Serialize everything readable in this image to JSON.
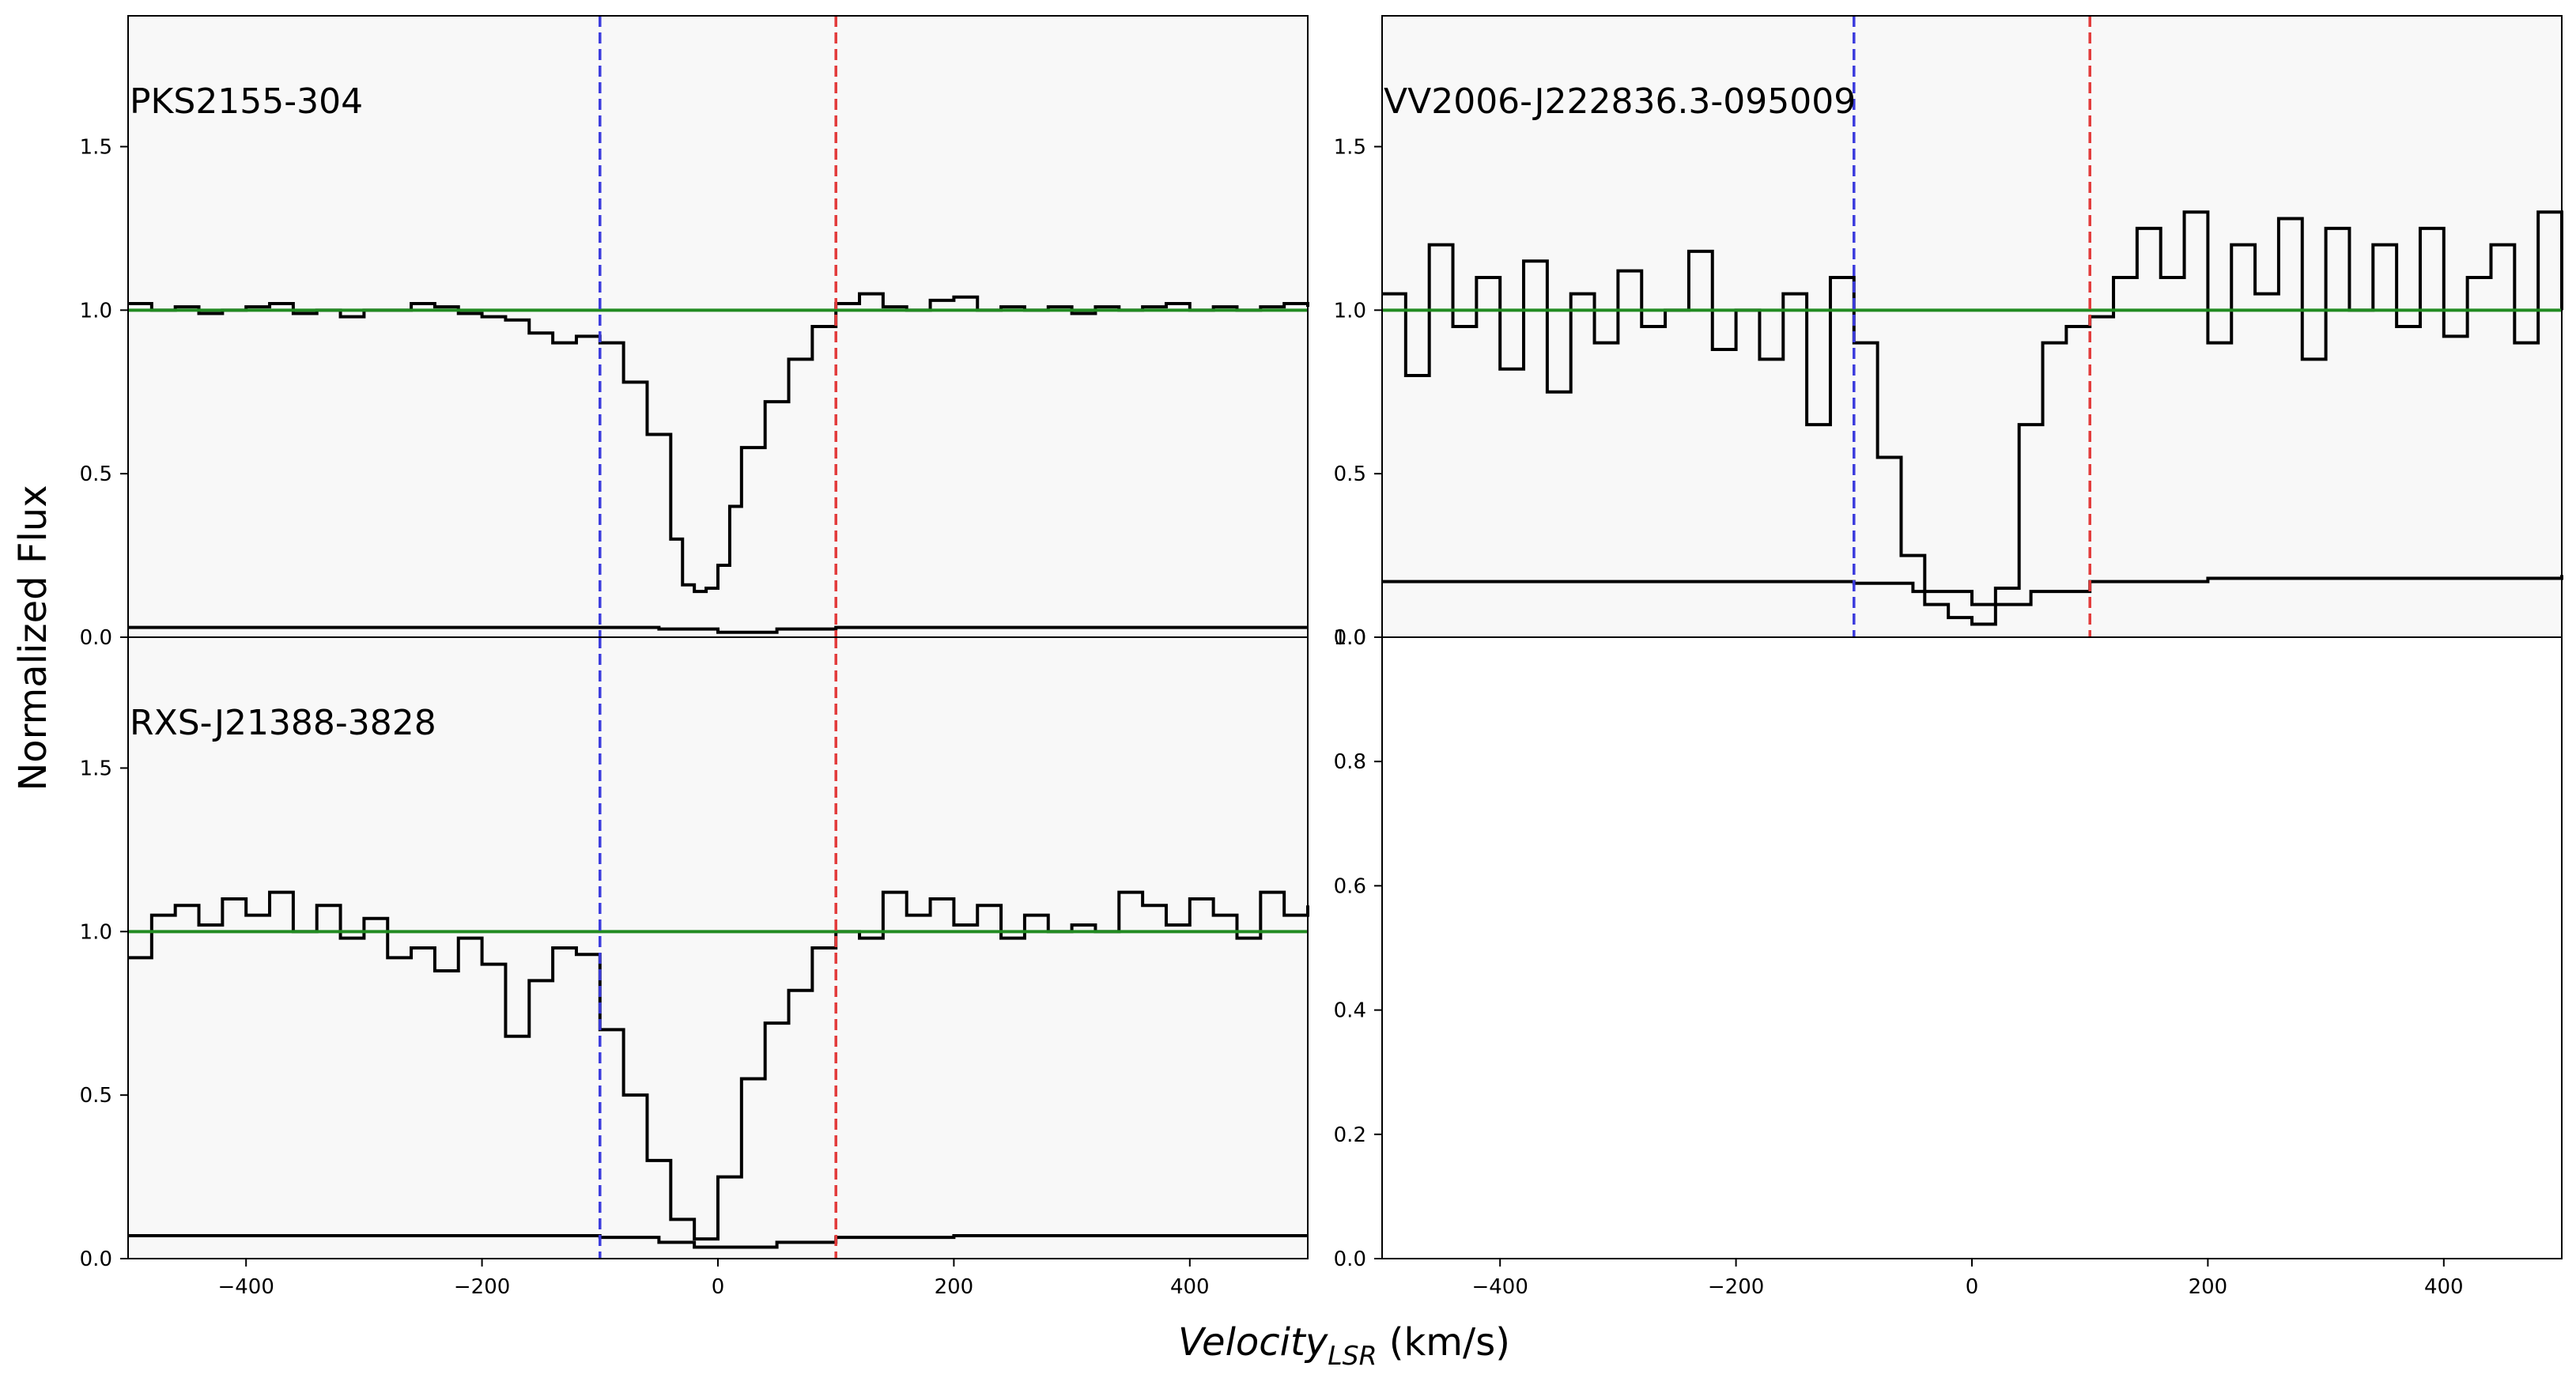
{
  "figure": {
    "xlabel_main": "Velocity",
    "xlabel_sub": "LSR",
    "xlabel_unit": " (km/s)",
    "ylabel": "Normalized Flux"
  },
  "chart_data": [
    {
      "type": "line",
      "panel": "top-left",
      "title": "PKS2155-304",
      "xlim": [
        -500,
        500
      ],
      "ylim": [
        0,
        1.9
      ],
      "yticks": [
        0.0,
        0.5,
        1.0,
        1.5
      ],
      "ytick_labels": [
        "0.0",
        "0.5",
        "1.0",
        "1.5"
      ],
      "xticks": [],
      "xtick_labels": [],
      "vlines": [
        {
          "x": -100,
          "color": "#3b3bdd"
        },
        {
          "x": 100,
          "color": "#e23a3a"
        }
      ],
      "hline": {
        "y": 1.0,
        "color": "#228b22"
      },
      "series": [
        {
          "role": "flux",
          "x": [
            -500,
            -480,
            -460,
            -440,
            -420,
            -400,
            -380,
            -360,
            -340,
            -320,
            -300,
            -280,
            -260,
            -240,
            -220,
            -200,
            -180,
            -160,
            -140,
            -120,
            -100,
            -80,
            -60,
            -40,
            -30,
            -20,
            -10,
            0,
            10,
            20,
            40,
            60,
            80,
            100,
            120,
            140,
            160,
            180,
            200,
            220,
            240,
            260,
            280,
            300,
            320,
            340,
            360,
            380,
            400,
            420,
            440,
            460,
            480,
            500
          ],
          "y": [
            1.02,
            1.0,
            1.01,
            0.99,
            1.0,
            1.01,
            1.02,
            0.99,
            1.0,
            0.98,
            1.0,
            1.0,
            1.02,
            1.01,
            0.99,
            0.98,
            0.97,
            0.93,
            0.9,
            0.92,
            0.9,
            0.78,
            0.62,
            0.3,
            0.16,
            0.14,
            0.15,
            0.22,
            0.4,
            0.58,
            0.72,
            0.85,
            0.95,
            1.02,
            1.05,
            1.01,
            1.0,
            1.03,
            1.04,
            1.0,
            1.01,
            1.0,
            1.01,
            0.99,
            1.01,
            1.0,
            1.01,
            1.02,
            1.0,
            1.01,
            1.0,
            1.01,
            1.02,
            1.01
          ]
        },
        {
          "role": "error",
          "x": [
            -500,
            -300,
            -200,
            -100,
            -50,
            0,
            50,
            100,
            200,
            300,
            500
          ],
          "y": [
            0.03,
            0.03,
            0.03,
            0.03,
            0.025,
            0.015,
            0.025,
            0.03,
            0.03,
            0.03,
            0.03
          ]
        }
      ]
    },
    {
      "type": "line",
      "panel": "top-right",
      "title": "VV2006-J222836.3-095009",
      "xlim": [
        -500,
        500
      ],
      "ylim": [
        0,
        1.9
      ],
      "yticks": [
        0.0,
        0.5,
        1.0,
        1.5
      ],
      "ytick_labels": [
        "0.0",
        "0.5",
        "1.0",
        "1.5"
      ],
      "xticks": [],
      "xtick_labels": [],
      "vlines": [
        {
          "x": -100,
          "color": "#3b3bdd"
        },
        {
          "x": 100,
          "color": "#e23a3a"
        }
      ],
      "hline": {
        "y": 1.0,
        "color": "#228b22"
      },
      "series": [
        {
          "role": "flux",
          "x": [
            -500,
            -480,
            -460,
            -440,
            -420,
            -400,
            -380,
            -360,
            -340,
            -320,
            -300,
            -280,
            -260,
            -240,
            -220,
            -200,
            -180,
            -160,
            -140,
            -120,
            -100,
            -80,
            -60,
            -40,
            -20,
            0,
            20,
            40,
            60,
            80,
            100,
            120,
            140,
            160,
            180,
            200,
            220,
            240,
            260,
            280,
            300,
            320,
            340,
            360,
            380,
            400,
            420,
            440,
            460,
            480,
            500
          ],
          "y": [
            1.05,
            0.8,
            1.2,
            0.95,
            1.1,
            0.82,
            1.15,
            0.75,
            1.05,
            0.9,
            1.12,
            0.95,
            1.0,
            1.18,
            0.88,
            1.0,
            0.85,
            1.05,
            0.65,
            1.1,
            0.9,
            0.55,
            0.25,
            0.1,
            0.06,
            0.04,
            0.15,
            0.65,
            0.9,
            0.95,
            0.98,
            1.1,
            1.25,
            1.1,
            1.3,
            0.9,
            1.2,
            1.05,
            1.28,
            0.85,
            1.25,
            1.0,
            1.2,
            0.95,
            1.25,
            0.92,
            1.1,
            1.2,
            0.9,
            1.3,
            1.0
          ]
        },
        {
          "role": "error",
          "x": [
            -500,
            -300,
            -150,
            -100,
            -50,
            0,
            50,
            100,
            200,
            300,
            400,
            500
          ],
          "y": [
            0.17,
            0.17,
            0.17,
            0.165,
            0.14,
            0.1,
            0.14,
            0.17,
            0.18,
            0.18,
            0.18,
            0.19
          ]
        }
      ]
    },
    {
      "type": "line",
      "panel": "bottom-left",
      "title": "RXS-J21388-3828",
      "xlim": [
        -500,
        500
      ],
      "ylim": [
        0,
        1.9
      ],
      "yticks": [
        0.0,
        0.5,
        1.0,
        1.5
      ],
      "ytick_labels": [
        "0.0",
        "0.5",
        "1.0",
        "1.5"
      ],
      "xticks": [
        -400,
        -200,
        0,
        200,
        400
      ],
      "xtick_labels": [
        "−400",
        "−200",
        "0",
        "200",
        "400"
      ],
      "vlines": [
        {
          "x": -100,
          "color": "#3b3bdd"
        },
        {
          "x": 100,
          "color": "#e23a3a"
        }
      ],
      "hline": {
        "y": 1.0,
        "color": "#228b22"
      },
      "series": [
        {
          "role": "flux",
          "x": [
            -500,
            -480,
            -460,
            -440,
            -420,
            -400,
            -380,
            -360,
            -340,
            -320,
            -300,
            -280,
            -260,
            -240,
            -220,
            -200,
            -180,
            -160,
            -140,
            -120,
            -100,
            -80,
            -60,
            -40,
            -20,
            0,
            20,
            40,
            60,
            80,
            100,
            120,
            140,
            160,
            180,
            200,
            220,
            240,
            260,
            280,
            300,
            320,
            340,
            360,
            380,
            400,
            420,
            440,
            460,
            480,
            500
          ],
          "y": [
            0.92,
            1.05,
            1.08,
            1.02,
            1.1,
            1.05,
            1.12,
            1.0,
            1.08,
            0.98,
            1.04,
            0.92,
            0.95,
            0.88,
            0.98,
            0.9,
            0.68,
            0.85,
            0.95,
            0.93,
            0.7,
            0.5,
            0.3,
            0.12,
            0.06,
            0.25,
            0.55,
            0.72,
            0.82,
            0.95,
            1.0,
            0.98,
            1.12,
            1.05,
            1.1,
            1.02,
            1.08,
            0.98,
            1.05,
            1.0,
            1.02,
            1.0,
            1.12,
            1.08,
            1.02,
            1.1,
            1.05,
            0.98,
            1.12,
            1.05,
            1.08
          ]
        },
        {
          "role": "error",
          "x": [
            -500,
            -300,
            -200,
            -100,
            -50,
            -20,
            0,
            50,
            100,
            200,
            300,
            500
          ],
          "y": [
            0.07,
            0.07,
            0.07,
            0.065,
            0.05,
            0.035,
            0.035,
            0.05,
            0.065,
            0.07,
            0.07,
            0.07
          ]
        }
      ]
    },
    {
      "type": "line",
      "panel": "bottom-right",
      "title": "",
      "xlim": [
        -500,
        500
      ],
      "ylim": [
        0,
        1
      ],
      "yticks": [
        0.0,
        0.2,
        0.4,
        0.6,
        0.8,
        1.0
      ],
      "ytick_labels": [
        "0.0",
        "0.2",
        "0.4",
        "0.6",
        "0.8",
        "1.0"
      ],
      "xticks": [
        -400,
        -200,
        0,
        200,
        400
      ],
      "xtick_labels": [
        "−400",
        "−200",
        "0",
        "200",
        "400"
      ],
      "vlines": [],
      "hline": null,
      "series": []
    }
  ]
}
